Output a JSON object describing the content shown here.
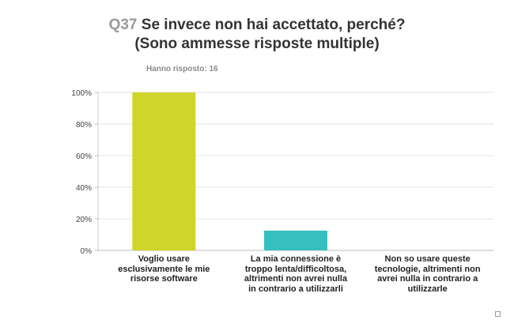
{
  "header": {
    "question_number": "Q37",
    "question_line1": "Se invece non hai accettato, perché?",
    "question_line2": "(Sono ammesse risposte multiple)",
    "respondents": "Hanno risposto: 16"
  },
  "chart_data": {
    "type": "bar",
    "categories": [
      "Voglio usare esclusivamente le mie risorse software",
      "La mia connessione è troppo lenta/difficoltosa, altrimenti non avrei nulla in contrario a utilizzarli",
      "Non so usare queste tecnologie, altrimenti non avrei nulla in contrario a utilizzarle"
    ],
    "category_lines": [
      [
        "Voglio usare",
        "esclusivamente le mie",
        "risorse software"
      ],
      [
        "La mia connessione è",
        "troppo lenta/difficoltosa,",
        "altrimenti non avrei nulla",
        "in contrario a utilizzarli"
      ],
      [
        "Non so usare queste",
        "tecnologie, altrimenti non",
        "avrei nulla in contrario a",
        "utilizzarle"
      ]
    ],
    "values": [
      100,
      12.5,
      0
    ],
    "colors": [
      "#cfd52b",
      "#36bfbf",
      "#8b5ca8"
    ],
    "ylim": [
      0,
      100
    ],
    "yticks": [
      0,
      20,
      40,
      60,
      80,
      100
    ],
    "ytick_labels": [
      "0%",
      "20%",
      "40%",
      "60%",
      "80%",
      "100%"
    ],
    "grid": true
  }
}
